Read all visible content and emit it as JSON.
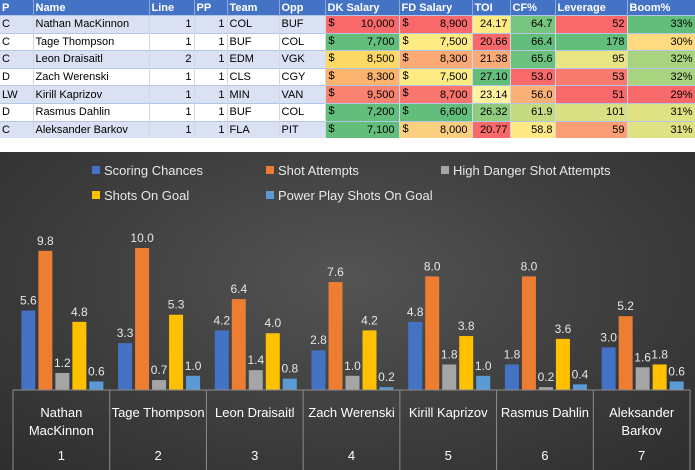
{
  "table": {
    "headers": [
      "P",
      "Name",
      "Line",
      "PP",
      "Team",
      "Opp",
      "DK Salary",
      "FD Salary",
      "TOI",
      "CF%",
      "Leverage",
      "Boom%"
    ],
    "currency_symbol": "$",
    "rows": [
      {
        "P": "C",
        "Name": "Nathan MacKinnon",
        "Line": "1",
        "PP": "1",
        "Team": "COL",
        "Opp": "BUF",
        "DK": "10,000",
        "FD": "8,900",
        "TOI": "24.17",
        "CF": "64.7",
        "Lev": "52",
        "Boom": "33%"
      },
      {
        "P": "C",
        "Name": "Tage Thompson",
        "Line": "1",
        "PP": "1",
        "Team": "BUF",
        "Opp": "COL",
        "DK": "7,700",
        "FD": "7,500",
        "TOI": "20.66",
        "CF": "66.4",
        "Lev": "178",
        "Boom": "30%"
      },
      {
        "P": "C",
        "Name": "Leon Draisaitl",
        "Line": "2",
        "PP": "1",
        "Team": "EDM",
        "Opp": "VGK",
        "DK": "8,500",
        "FD": "8,300",
        "TOI": "21.38",
        "CF": "65.6",
        "Lev": "95",
        "Boom": "32%"
      },
      {
        "P": "D",
        "Name": "Zach Werenski",
        "Line": "1",
        "PP": "1",
        "Team": "CLS",
        "Opp": "CGY",
        "DK": "8,300",
        "FD": "7,500",
        "TOI": "27.10",
        "CF": "53.0",
        "Lev": "53",
        "Boom": "32%"
      },
      {
        "P": "LW",
        "Name": "Kirill Kaprizov",
        "Line": "1",
        "PP": "1",
        "Team": "MIN",
        "Opp": "VAN",
        "DK": "9,500",
        "FD": "8,700",
        "TOI": "23.14",
        "CF": "56.0",
        "Lev": "51",
        "Boom": "29%"
      },
      {
        "P": "D",
        "Name": "Rasmus Dahlin",
        "Line": "1",
        "PP": "1",
        "Team": "BUF",
        "Opp": "COL",
        "DK": "7,200",
        "FD": "6,600",
        "TOI": "26.32",
        "CF": "61.9",
        "Lev": "101",
        "Boom": "31%"
      },
      {
        "P": "C",
        "Name": "Aleksander Barkov",
        "Line": "1",
        "PP": "1",
        "Team": "FLA",
        "Opp": "PIT",
        "DK": "7,100",
        "FD": "8,000",
        "TOI": "20.77",
        "CF": "58.8",
        "Lev": "59",
        "Boom": "31%"
      }
    ],
    "cell_colors": {
      "DK": [
        "#f8696b",
        "#63be7b",
        "#ffd966",
        "#fbb36e",
        "#f98370",
        "#63be7b",
        "#63be7b"
      ],
      "FD": [
        "#f8696b",
        "#ffeb84",
        "#fbaa76",
        "#ffeb84",
        "#f8766d",
        "#63be7b",
        "#fbcf80"
      ],
      "TOI": [
        "#ffeb84",
        "#f8696b",
        "#fbab77",
        "#63be7b",
        "#fff2a0",
        "#90cb7e",
        "#f8696b"
      ],
      "CF": [
        "#76c47d",
        "#63be7b",
        "#6cc17c",
        "#f8696b",
        "#fbb078",
        "#c6db81",
        "#ffe984"
      ],
      "Lev": [
        "#f8696b",
        "#63be7b",
        "#e9e583",
        "#f8796e",
        "#f8696b",
        "#d8e083",
        "#fb9e75"
      ],
      "Boom": [
        "#63be7b",
        "#fedb80",
        "#a8d480",
        "#a8d480",
        "#f8696b",
        "#dfe283",
        "#dfe283"
      ]
    }
  },
  "chart_data": {
    "type": "bar",
    "categories": [
      {
        "name": "Nathan MacKinnon",
        "name_lines": [
          "Nathan",
          "MacKinnon"
        ],
        "index": "1"
      },
      {
        "name": "Tage Thompson",
        "name_lines": [
          "Tage Thompson"
        ],
        "index": "2"
      },
      {
        "name": "Leon Draisaitl",
        "name_lines": [
          "Leon Draisaitl"
        ],
        "index": "3"
      },
      {
        "name": "Zach Werenski",
        "name_lines": [
          "Zach Werenski"
        ],
        "index": "4"
      },
      {
        "name": "Kirill Kaprizov",
        "name_lines": [
          "Kirill Kaprizov"
        ],
        "index": "5"
      },
      {
        "name": "Rasmus Dahlin",
        "name_lines": [
          "Rasmus Dahlin"
        ],
        "index": "6"
      },
      {
        "name": "Aleksander Barkov",
        "name_lines": [
          "Aleksander",
          "Barkov"
        ],
        "index": "7"
      }
    ],
    "series": [
      {
        "name": "Scoring Chances",
        "color": "#4472c4",
        "values": [
          5.6,
          3.3,
          4.2,
          2.8,
          4.8,
          1.8,
          3.0
        ]
      },
      {
        "name": "Shot Attempts",
        "color": "#ed7d31",
        "values": [
          9.8,
          10.0,
          6.4,
          7.6,
          8.0,
          8.0,
          5.2
        ]
      },
      {
        "name": "High Danger Shot Attempts",
        "color": "#a5a5a5",
        "values": [
          1.2,
          0.7,
          1.4,
          1.0,
          1.8,
          0.2,
          1.6
        ]
      },
      {
        "name": "Shots On Goal",
        "color": "#ffc000",
        "values": [
          4.8,
          5.3,
          4.0,
          4.2,
          3.8,
          3.6,
          1.8
        ]
      },
      {
        "name": "Power Play Shots On Goal",
        "color": "#5b9bd5",
        "values": [
          0.6,
          1.0,
          0.8,
          0.2,
          1.0,
          0.4,
          0.6
        ]
      }
    ],
    "ylim": [
      0,
      10.0
    ],
    "legend": "top",
    "grid": false,
    "title": "",
    "xlabel": "",
    "ylabel": ""
  }
}
